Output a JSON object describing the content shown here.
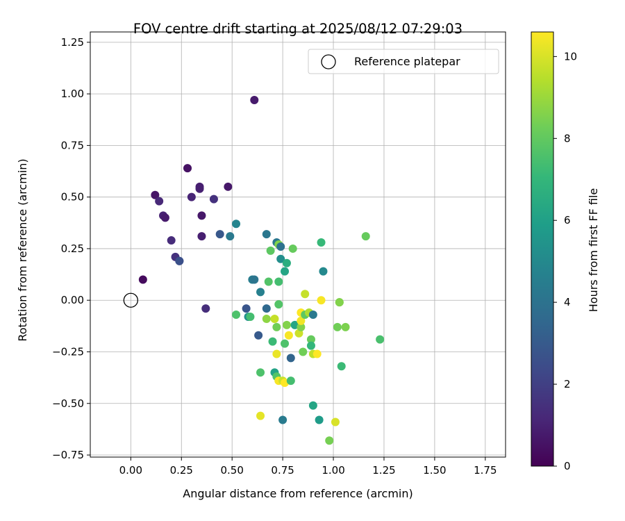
{
  "chart_data": {
    "type": "scatter",
    "title": "FOV centre drift starting at 2025/08/12 07:29:03",
    "xlabel": "Angular distance from reference (arcmin)",
    "ylabel": "Rotation from reference (arcmin)",
    "xlim": [
      -0.2,
      1.85
    ],
    "ylim": [
      -0.76,
      1.3
    ],
    "xticks": [
      "0.00",
      "0.25",
      "0.50",
      "0.75",
      "1.00",
      "1.25",
      "1.50",
      "1.75"
    ],
    "yticks": [
      "−0.75",
      "−0.50",
      "−0.25",
      "0.00",
      "0.25",
      "0.50",
      "0.75",
      "1.00",
      "1.25"
    ],
    "grid": true,
    "legend": {
      "label": "Reference platepar",
      "location": "top-right",
      "marker": "open-circle"
    },
    "reference_point": [
      0.0,
      0.0
    ],
    "colorbar": {
      "label": "Hours from first FF file",
      "range": [
        0,
        10.6
      ],
      "ticks": [
        "0",
        "2",
        "4",
        "6",
        "8",
        "10"
      ],
      "colormap": "viridis"
    },
    "points": [
      [
        0.06,
        0.1,
        0.3
      ],
      [
        0.12,
        0.51,
        0.6
      ],
      [
        0.14,
        0.48,
        1.2
      ],
      [
        0.16,
        0.41,
        1.0
      ],
      [
        0.17,
        0.4,
        0.8
      ],
      [
        0.2,
        0.29,
        1.3
      ],
      [
        0.22,
        0.21,
        1.5
      ],
      [
        0.24,
        0.19,
        2.3
      ],
      [
        0.24,
        0.19,
        2.6
      ],
      [
        0.28,
        0.64,
        0.5
      ],
      [
        0.3,
        0.5,
        1.1
      ],
      [
        0.34,
        0.54,
        1.0
      ],
      [
        0.34,
        0.55,
        0.9
      ],
      [
        0.35,
        0.31,
        0.9
      ],
      [
        0.35,
        0.41,
        0.7
      ],
      [
        0.37,
        -0.04,
        1.4
      ],
      [
        0.41,
        0.49,
        1.5
      ],
      [
        0.44,
        0.32,
        2.9
      ],
      [
        0.48,
        0.55,
        0.7
      ],
      [
        0.49,
        0.31,
        4.3
      ],
      [
        0.52,
        0.37,
        4.8
      ],
      [
        0.61,
        0.97,
        0.8
      ],
      [
        0.52,
        -0.07,
        7.6
      ],
      [
        0.57,
        -0.04,
        2.8
      ],
      [
        0.58,
        -0.08,
        5.3
      ],
      [
        0.59,
        -0.08,
        7.4
      ],
      [
        0.6,
        0.1,
        4.5
      ],
      [
        0.61,
        0.1,
        4.1
      ],
      [
        0.63,
        -0.17,
        3.0
      ],
      [
        0.64,
        0.04,
        4.6
      ],
      [
        0.64,
        -0.35,
        7.6
      ],
      [
        0.64,
        -0.56,
        10.2
      ],
      [
        0.67,
        0.32,
        4.2
      ],
      [
        0.67,
        -0.04,
        3.6
      ],
      [
        0.67,
        -0.09,
        8.8
      ],
      [
        0.68,
        0.09,
        7.7
      ],
      [
        0.69,
        0.24,
        7.9
      ],
      [
        0.7,
        -0.2,
        7.2
      ],
      [
        0.71,
        -0.09,
        9.7
      ],
      [
        0.71,
        -0.35,
        6.1
      ],
      [
        0.72,
        -0.37,
        7.7
      ],
      [
        0.72,
        -0.13,
        8.3
      ],
      [
        0.72,
        -0.26,
        10.3
      ],
      [
        0.72,
        0.28,
        4.2
      ],
      [
        0.73,
        0.09,
        7.4
      ],
      [
        0.73,
        -0.02,
        7.7
      ],
      [
        0.73,
        0.27,
        8.6
      ],
      [
        0.73,
        -0.39,
        10.5
      ],
      [
        0.74,
        0.26,
        4.0
      ],
      [
        0.74,
        0.2,
        5.2
      ],
      [
        0.75,
        -0.58,
        4.4
      ],
      [
        0.75,
        -0.39,
        9.8
      ],
      [
        0.76,
        0.14,
        6.2
      ],
      [
        0.76,
        -0.21,
        7.6
      ],
      [
        0.76,
        -0.4,
        10.6
      ],
      [
        0.77,
        -0.12,
        8.6
      ],
      [
        0.77,
        0.18,
        6.6
      ],
      [
        0.78,
        -0.17,
        10.5
      ],
      [
        0.79,
        -0.39,
        7.4
      ],
      [
        0.79,
        -0.28,
        3.4
      ],
      [
        0.8,
        0.25,
        8.1
      ],
      [
        0.81,
        -0.12,
        6.2
      ],
      [
        0.83,
        -0.16,
        9.8
      ],
      [
        0.84,
        -0.13,
        8.6
      ],
      [
        0.84,
        -0.06,
        10.6
      ],
      [
        0.84,
        -0.1,
        10.4
      ],
      [
        0.85,
        -0.25,
        8.3
      ],
      [
        0.86,
        0.03,
        9.7
      ],
      [
        0.86,
        -0.07,
        7.9
      ],
      [
        0.88,
        -0.06,
        9.3
      ],
      [
        0.89,
        -0.19,
        8.1
      ],
      [
        0.89,
        -0.22,
        7.0
      ],
      [
        0.9,
        -0.07,
        4.3
      ],
      [
        0.9,
        -0.51,
        6.2
      ],
      [
        0.9,
        -0.26,
        9.6
      ],
      [
        0.92,
        -0.26,
        10.6
      ],
      [
        0.93,
        -0.58,
        5.8
      ],
      [
        0.94,
        0.28,
        7.1
      ],
      [
        0.94,
        0.0,
        10.5
      ],
      [
        0.95,
        0.14,
        5.0
      ],
      [
        0.98,
        -0.68,
        8.4
      ],
      [
        1.01,
        -0.59,
        10.0
      ],
      [
        1.02,
        -0.13,
        8.3
      ],
      [
        1.03,
        -0.01,
        8.4
      ],
      [
        1.03,
        -0.01,
        8.6
      ],
      [
        1.04,
        -0.32,
        7.2
      ],
      [
        1.06,
        -0.13,
        8.5
      ],
      [
        1.16,
        0.31,
        8.1
      ],
      [
        1.23,
        -0.19,
        7.5
      ]
    ]
  }
}
